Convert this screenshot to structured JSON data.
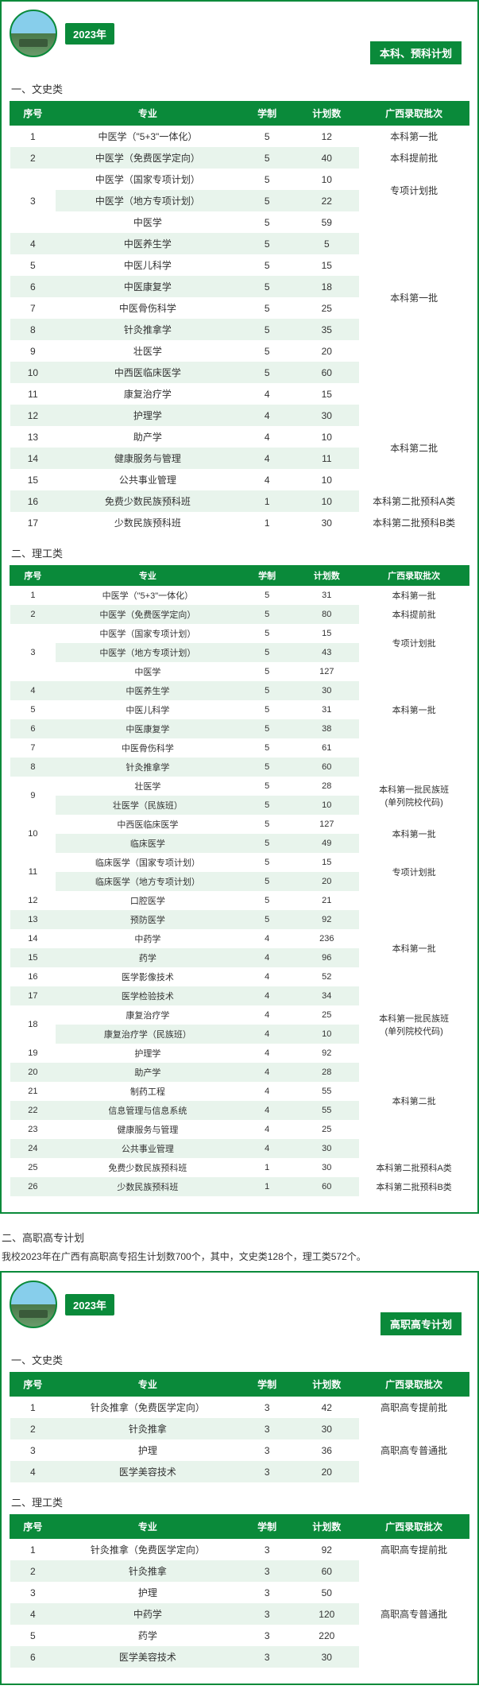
{
  "year": "2023年",
  "tag1": "本科、预科计划",
  "tag2": "高职高专计划",
  "sec2_title": "二、高职高专计划",
  "sec2_note": "我校2023年在广西有高职高专招生计划数700个，其中，文史类128个，理工类572个。",
  "cat_wenshi": "一、文史类",
  "cat_ligong": "二、理工类",
  "headers": {
    "idx": "序号",
    "major": "专业",
    "dur": "学制",
    "num": "计划数",
    "batch": "广西录取批次"
  },
  "t1": [
    {
      "idx": "1",
      "major": "中医学（\"5+3\"一体化）",
      "dur": "5",
      "num": "12",
      "batch": "本科第一批",
      "bspan": 1
    },
    {
      "idx": "2",
      "major": "中医学（免费医学定向）",
      "dur": "5",
      "num": "40",
      "batch": "本科提前批",
      "bspan": 1
    },
    {
      "idx": "3",
      "major": "中医学（国家专项计划）",
      "dur": "5",
      "num": "10",
      "batch": "专项计划批",
      "bspan": 2,
      "ispan": 3
    },
    {
      "idx": "",
      "major": "中医学（地方专项计划）",
      "dur": "5",
      "num": "22"
    },
    {
      "idx": "",
      "major": "中医学",
      "dur": "5",
      "num": "59",
      "batch": "本科第一批",
      "bspan": 8
    },
    {
      "idx": "4",
      "major": "中医养生学",
      "dur": "5",
      "num": "5"
    },
    {
      "idx": "5",
      "major": "中医儿科学",
      "dur": "5",
      "num": "15"
    },
    {
      "idx": "6",
      "major": "中医康复学",
      "dur": "5",
      "num": "18"
    },
    {
      "idx": "7",
      "major": "中医骨伤科学",
      "dur": "5",
      "num": "25"
    },
    {
      "idx": "8",
      "major": "针灸推拿学",
      "dur": "5",
      "num": "35"
    },
    {
      "idx": "9",
      "major": "壮医学",
      "dur": "5",
      "num": "20"
    },
    {
      "idx": "10",
      "major": "中西医临床医学",
      "dur": "5",
      "num": "60"
    },
    {
      "idx": "11",
      "major": "康复治疗学",
      "dur": "4",
      "num": "15",
      "batch": "",
      "bspan": 1,
      "blank": true
    },
    {
      "idx": "12",
      "major": "护理学",
      "dur": "4",
      "num": "30",
      "batch": "本科第二批",
      "bspan": 4
    },
    {
      "idx": "13",
      "major": "助产学",
      "dur": "4",
      "num": "10"
    },
    {
      "idx": "14",
      "major": "健康服务与管理",
      "dur": "4",
      "num": "11"
    },
    {
      "idx": "15",
      "major": "公共事业管理",
      "dur": "4",
      "num": "10"
    },
    {
      "idx": "16",
      "major": "免费少数民族预科班",
      "dur": "1",
      "num": "10",
      "batch": "本科第二批预科A类",
      "bspan": 1
    },
    {
      "idx": "17",
      "major": "少数民族预科班",
      "dur": "1",
      "num": "30",
      "batch": "本科第二批预科B类",
      "bspan": 1
    }
  ],
  "t2": [
    {
      "idx": "1",
      "major": "中医学（\"5+3\"一体化）",
      "dur": "5",
      "num": "31",
      "batch": "本科第一批",
      "bspan": 1
    },
    {
      "idx": "2",
      "major": "中医学（免费医学定向）",
      "dur": "5",
      "num": "80",
      "batch": "本科提前批",
      "bspan": 1
    },
    {
      "idx": "3",
      "major": "中医学（国家专项计划）",
      "dur": "5",
      "num": "15",
      "batch": "专项计划批",
      "bspan": 2,
      "ispan": 3
    },
    {
      "idx": "",
      "major": "中医学（地方专项计划）",
      "dur": "5",
      "num": "43"
    },
    {
      "idx": "",
      "major": "中医学",
      "dur": "5",
      "num": "127",
      "batch": "本科第一批",
      "bspan": 5
    },
    {
      "idx": "4",
      "major": "中医养生学",
      "dur": "5",
      "num": "30"
    },
    {
      "idx": "5",
      "major": "中医儿科学",
      "dur": "5",
      "num": "31"
    },
    {
      "idx": "6",
      "major": "中医康复学",
      "dur": "5",
      "num": "38"
    },
    {
      "idx": "7",
      "major": "中医骨伤科学",
      "dur": "5",
      "num": "61"
    },
    {
      "idx": "8",
      "major": "针灸推拿学",
      "dur": "5",
      "num": "60",
      "batch": "",
      "bspan": 1,
      "blank": true
    },
    {
      "idx": "9",
      "major": "壮医学",
      "dur": "5",
      "num": "28",
      "batch": "本科第一批民族班\n(单列院校代码)",
      "bspan": 2,
      "ispan": 2
    },
    {
      "idx": "",
      "major": "壮医学（民族班）",
      "dur": "5",
      "num": "10"
    },
    {
      "idx": "10",
      "major": "中西医临床医学",
      "dur": "5",
      "num": "127",
      "batch": "本科第一批",
      "bspan": 2,
      "ispan": 2
    },
    {
      "idx": "",
      "major": "临床医学",
      "dur": "5",
      "num": "49"
    },
    {
      "idx": "11",
      "major": "临床医学（国家专项计划）",
      "dur": "5",
      "num": "15",
      "batch": "专项计划批",
      "bspan": 2,
      "ispan": 2
    },
    {
      "idx": "",
      "major": "临床医学（地方专项计划）",
      "dur": "5",
      "num": "20"
    },
    {
      "idx": "12",
      "major": "口腔医学",
      "dur": "5",
      "num": "21",
      "batch": "本科第一批",
      "bspan": 6
    },
    {
      "idx": "13",
      "major": "预防医学",
      "dur": "5",
      "num": "92"
    },
    {
      "idx": "14",
      "major": "中药学",
      "dur": "4",
      "num": "236"
    },
    {
      "idx": "15",
      "major": "药学",
      "dur": "4",
      "num": "96"
    },
    {
      "idx": "16",
      "major": "医学影像技术",
      "dur": "4",
      "num": "52"
    },
    {
      "idx": "17",
      "major": "医学检验技术",
      "dur": "4",
      "num": "34"
    },
    {
      "idx": "18",
      "major": "康复治疗学",
      "dur": "4",
      "num": "25",
      "batch": "本科第一批民族班\n(单列院校代码)",
      "bspan": 2,
      "ispan": 2
    },
    {
      "idx": "",
      "major": "康复治疗学（民族班）",
      "dur": "4",
      "num": "10"
    },
    {
      "idx": "19",
      "major": "护理学",
      "dur": "4",
      "num": "92",
      "batch": "本科第二批",
      "bspan": 6
    },
    {
      "idx": "20",
      "major": "助产学",
      "dur": "4",
      "num": "28"
    },
    {
      "idx": "21",
      "major": "制药工程",
      "dur": "4",
      "num": "55"
    },
    {
      "idx": "22",
      "major": "信息管理与信息系统",
      "dur": "4",
      "num": "55"
    },
    {
      "idx": "23",
      "major": "健康服务与管理",
      "dur": "4",
      "num": "25"
    },
    {
      "idx": "24",
      "major": "公共事业管理",
      "dur": "4",
      "num": "30"
    },
    {
      "idx": "25",
      "major": "免费少数民族预科班",
      "dur": "1",
      "num": "30",
      "batch": "本科第二批预科A类",
      "bspan": 1
    },
    {
      "idx": "26",
      "major": "少数民族预科班",
      "dur": "1",
      "num": "60",
      "batch": "本科第二批预科B类",
      "bspan": 1
    }
  ],
  "t3": [
    {
      "idx": "1",
      "major": "针灸推拿（免费医学定向）",
      "dur": "3",
      "num": "42",
      "batch": "高职高专提前批",
      "bspan": 1
    },
    {
      "idx": "2",
      "major": "针灸推拿",
      "dur": "3",
      "num": "30",
      "batch": "高职高专普通批",
      "bspan": 3
    },
    {
      "idx": "3",
      "major": "护理",
      "dur": "3",
      "num": "36"
    },
    {
      "idx": "4",
      "major": "医学美容技术",
      "dur": "3",
      "num": "20"
    }
  ],
  "t4": [
    {
      "idx": "1",
      "major": "针灸推拿（免费医学定向）",
      "dur": "3",
      "num": "92",
      "batch": "高职高专提前批",
      "bspan": 1
    },
    {
      "idx": "2",
      "major": "针灸推拿",
      "dur": "3",
      "num": "60",
      "batch": "高职高专普通批",
      "bspan": 5
    },
    {
      "idx": "3",
      "major": "护理",
      "dur": "3",
      "num": "50"
    },
    {
      "idx": "4",
      "major": "中药学",
      "dur": "3",
      "num": "120"
    },
    {
      "idx": "5",
      "major": "药学",
      "dur": "3",
      "num": "220"
    },
    {
      "idx": "6",
      "major": "医学美容技术",
      "dur": "3",
      "num": "30"
    }
  ]
}
